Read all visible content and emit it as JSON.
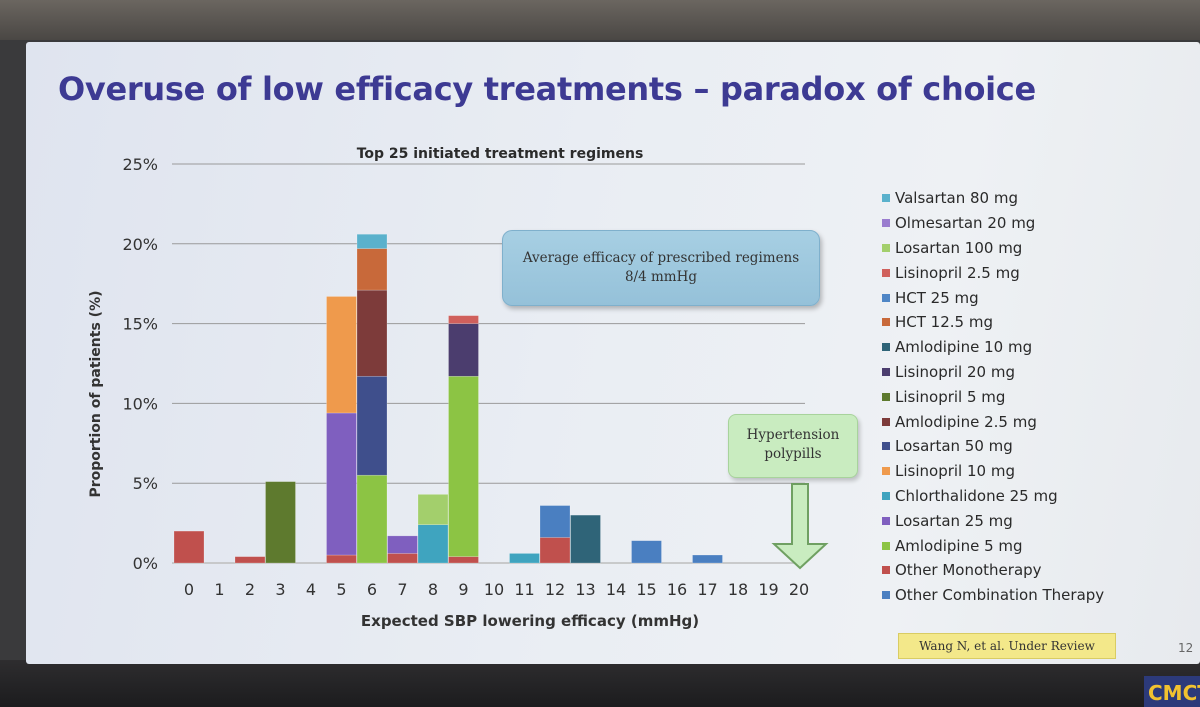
{
  "slide": {
    "title": "Overuse of low efficacy treatments – paradox of choice",
    "slide_number": "12",
    "citation": "Wang N, et al. Under Review",
    "corner_logo": "CMCT"
  },
  "callouts": {
    "average_line1": "Average efficacy of prescribed regimens",
    "average_line2": "8/4 mmHg",
    "polypill_line1": "Hypertension",
    "polypill_line2": "polypills"
  },
  "colors": {
    "axis": "#bdbdbd",
    "grid": "#9a9a9a",
    "arrow_fill": "#c9ecc0",
    "arrow_stroke": "#6fa062"
  },
  "chart_data": {
    "type": "bar",
    "stacked": true,
    "title": "Top 25 initiated treatment regimens",
    "xlabel": "Expected SBP lowering efficacy (mmHg)",
    "ylabel": "Proportion of patients (%)",
    "ylim": [
      0,
      25
    ],
    "yticks": [
      "0%",
      "5%",
      "10%",
      "15%",
      "20%",
      "25%"
    ],
    "grid": true,
    "legend_position": "right",
    "categories": [
      "0",
      "1",
      "2",
      "3",
      "4",
      "5",
      "6",
      "7",
      "8",
      "9",
      "10",
      "11",
      "12",
      "13",
      "14",
      "15",
      "16",
      "17",
      "18",
      "19",
      "20"
    ],
    "series": [
      {
        "name": "Other Monotherapy",
        "color": "#c0504d",
        "values": [
          2.0,
          0,
          0.4,
          0,
          0,
          0.5,
          0,
          0.6,
          0,
          0.4,
          0,
          0,
          1.6,
          0,
          0,
          0,
          0,
          0,
          0,
          0,
          0
        ]
      },
      {
        "name": "Other Combination Therapy",
        "color": "#4a7fc1",
        "values": [
          0,
          0,
          0,
          0,
          0,
          0,
          0,
          0,
          0,
          0,
          0,
          0,
          2.0,
          0,
          0,
          1.4,
          0,
          0.5,
          0,
          0,
          0
        ]
      },
      {
        "name": "Amlodipine 5 mg",
        "color": "#8cc444",
        "values": [
          0,
          0,
          0,
          0,
          0,
          0,
          5.5,
          0,
          0,
          11.3,
          0,
          0,
          0,
          0,
          0,
          0,
          0,
          0,
          0,
          0,
          0
        ]
      },
      {
        "name": "Losartan 25 mg",
        "color": "#7f5fbf",
        "values": [
          0,
          0,
          0,
          0,
          0,
          8.9,
          0,
          1.1,
          0,
          0,
          0,
          0,
          0,
          0,
          0,
          0,
          0,
          0,
          0,
          0,
          0
        ]
      },
      {
        "name": "Chlorthalidone 25 mg",
        "color": "#3fa4bf",
        "values": [
          0,
          0,
          0,
          0,
          0,
          0,
          0,
          0,
          2.4,
          0,
          0,
          0.6,
          0,
          0,
          0,
          0,
          0,
          0,
          0,
          0,
          0
        ]
      },
      {
        "name": "Lisinopril 10 mg",
        "color": "#ef9a4c",
        "values": [
          0,
          0,
          0,
          0,
          0,
          7.3,
          0,
          0,
          0,
          0,
          0,
          0,
          0,
          0,
          0,
          0,
          0,
          0,
          0,
          0,
          0
        ]
      },
      {
        "name": "Losartan 50 mg",
        "color": "#3f4f8c",
        "values": [
          0,
          0,
          0,
          0,
          0,
          0,
          6.2,
          0,
          0,
          0,
          0,
          0,
          0,
          0,
          0,
          0,
          0,
          0,
          0,
          0,
          0
        ]
      },
      {
        "name": "Amlodipine 2.5 mg",
        "color": "#7d3b3a",
        "values": [
          0,
          0,
          0,
          0,
          0,
          0,
          5.4,
          0,
          0,
          0,
          0,
          0,
          0,
          0,
          0,
          0,
          0,
          0,
          0,
          0,
          0
        ]
      },
      {
        "name": "Lisinopril 5 mg",
        "color": "#5e7a2e",
        "values": [
          0,
          0,
          0,
          5.1,
          0,
          0,
          0,
          0,
          0,
          0,
          0,
          0,
          0,
          0,
          0,
          0,
          0,
          0,
          0,
          0,
          0
        ]
      },
      {
        "name": "Lisinopril 20 mg",
        "color": "#4b3d6e",
        "values": [
          0,
          0,
          0,
          0,
          0,
          0,
          0,
          0,
          0,
          3.3,
          0,
          0,
          0,
          0,
          0,
          0,
          0,
          0,
          0,
          0,
          0
        ]
      },
      {
        "name": "Amlodipine 10 mg",
        "color": "#2f6478",
        "values": [
          0,
          0,
          0,
          0,
          0,
          0,
          0,
          0,
          0,
          0,
          0,
          0,
          0,
          3.0,
          0,
          0,
          0,
          0,
          0,
          0,
          0
        ]
      },
      {
        "name": "HCT 12.5 mg",
        "color": "#c8693a",
        "values": [
          0,
          0,
          0,
          0,
          0,
          0,
          2.6,
          0,
          0,
          0,
          0,
          0,
          0,
          0,
          0,
          0,
          0,
          0,
          0,
          0,
          0
        ]
      },
      {
        "name": "HCT 25 mg",
        "color": "#4f86c6",
        "values": [
          0,
          0,
          0,
          0,
          0,
          0,
          0,
          0,
          0,
          0,
          0,
          0,
          0,
          0,
          0,
          0,
          0,
          0,
          0,
          0,
          0
        ]
      },
      {
        "name": "Lisinopril 2.5 mg",
        "color": "#d0605c",
        "values": [
          0,
          0,
          0,
          0,
          0,
          0,
          0,
          0,
          0,
          0.5,
          0,
          0,
          0,
          0,
          0,
          0,
          0,
          0,
          0,
          0,
          0
        ]
      },
      {
        "name": "Losartan 100 mg",
        "color": "#a3cf6c",
        "values": [
          0,
          0,
          0,
          0,
          0,
          0,
          0,
          0,
          1.9,
          0,
          0,
          0,
          0,
          0,
          0,
          0,
          0,
          0,
          0,
          0,
          0
        ]
      },
      {
        "name": "Olmesartan 20 mg",
        "color": "#9a7ccf",
        "values": [
          0,
          0,
          0,
          0,
          0,
          0,
          0,
          0,
          0,
          0,
          0,
          0,
          0,
          0,
          0,
          0,
          0,
          0,
          0,
          0,
          0
        ]
      },
      {
        "name": "Valsartan 80 mg",
        "color": "#5ab1cc",
        "values": [
          0,
          0,
          0,
          0,
          0,
          0,
          0.9,
          0,
          0,
          0,
          0,
          0,
          0,
          0,
          0,
          0,
          0,
          0,
          0,
          0,
          0
        ]
      }
    ],
    "legend_order": [
      "Valsartan 80 mg",
      "Olmesartan 20 mg",
      "Losartan 100 mg",
      "Lisinopril 2.5 mg",
      "HCT 25 mg",
      "HCT 12.5 mg",
      "Amlodipine 10 mg",
      "Lisinopril 20 mg",
      "Lisinopril 5 mg",
      "Amlodipine 2.5 mg",
      "Losartan 50 mg",
      "Lisinopril 10 mg",
      "Chlorthalidone 25 mg",
      "Losartan 25 mg",
      "Amlodipine 5 mg",
      "Other Monotherapy",
      "Other Combination Therapy"
    ]
  }
}
